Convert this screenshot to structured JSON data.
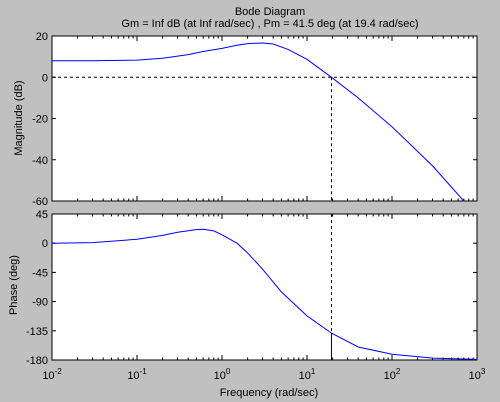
{
  "figure": {
    "background": "#c0c0c0",
    "axes_background": "#ffffff",
    "line_color": "#0000ff",
    "marker_color": "#000000"
  },
  "chart_data": {
    "type": "line",
    "title": "Bode Diagram",
    "subtitle": "Gm = Inf dB (at Inf rad/sec) ,  Pm = 41.5 deg (at 19.4 rad/sec)",
    "xlabel": "Frequency  (rad/sec)",
    "xscale": "log",
    "xlim": [
      0.01,
      1000
    ],
    "x_ticks": [
      {
        "value": 0.01,
        "base": "10",
        "exp": "-2"
      },
      {
        "value": 0.1,
        "base": "10",
        "exp": "-1"
      },
      {
        "value": 1,
        "base": "10",
        "exp": "0"
      },
      {
        "value": 10,
        "base": "10",
        "exp": "1"
      },
      {
        "value": 100,
        "base": "10",
        "exp": "2"
      },
      {
        "value": 1000,
        "base": "10",
        "exp": "3"
      }
    ],
    "grid": false,
    "crossover_frequency": 19.4,
    "panels": [
      {
        "ylabel": "Magnitude (dB)",
        "ylim": [
          -60,
          20
        ],
        "y_ticks": [
          20,
          0,
          -20,
          -40,
          -60
        ],
        "y_tick_labels": [
          "20",
          "0",
          "-20",
          "-40",
          "-60"
        ],
        "reference_line": 0,
        "x": [
          0.01,
          0.03,
          0.1,
          0.2,
          0.4,
          0.6,
          1,
          1.5,
          2,
          3,
          4,
          6,
          10,
          19.4,
          40,
          100,
          300,
          700
        ],
        "y": [
          8,
          8,
          8.3,
          9.2,
          11,
          12.5,
          14,
          15.5,
          16.3,
          16.6,
          16.1,
          13.5,
          8.7,
          0,
          -10,
          -24,
          -43,
          -60
        ]
      },
      {
        "ylabel": "Phase (deg)",
        "ylim": [
          -180,
          45
        ],
        "y_ticks": [
          45,
          0,
          -45,
          -90,
          -135,
          -180
        ],
        "y_tick_labels": [
          "45",
          "0",
          "-45",
          "-90",
          "-135",
          "-180"
        ],
        "reference_line": -180,
        "x": [
          0.01,
          0.03,
          0.1,
          0.2,
          0.3,
          0.5,
          0.6,
          0.8,
          1,
          1.5,
          2,
          3,
          5,
          10,
          19.4,
          40,
          100,
          300,
          1000
        ],
        "y": [
          0,
          1,
          6,
          12,
          17,
          21,
          21.5,
          19,
          13,
          0,
          -15,
          -40,
          -75,
          -112,
          -138.5,
          -160,
          -171,
          -177,
          -179
        ]
      }
    ]
  }
}
